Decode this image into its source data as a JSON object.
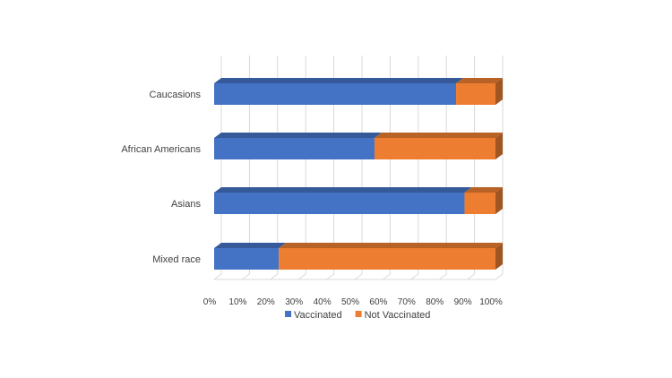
{
  "chart_data": {
    "type": "bar",
    "orientation": "horizontal",
    "stacked": "percent",
    "three_d": true,
    "title": "",
    "xlabel": "",
    "ylabel": "",
    "categories": [
      "Caucasions",
      "African Americans",
      "Asians",
      "Mixed race"
    ],
    "series": [
      {
        "name": "Vaccinated",
        "values": [
          86,
          57,
          89,
          23
        ],
        "color": "#4472C4"
      },
      {
        "name": "Not Vaccinated",
        "values": [
          14,
          43,
          11,
          77
        ],
        "color": "#ED7D31"
      }
    ],
    "xlim": [
      0,
      100
    ],
    "x_tick_labels": [
      "0%",
      "10%",
      "20%",
      "30%",
      "40%",
      "50%",
      "60%",
      "70%",
      "80%",
      "90%",
      "100%"
    ],
    "grid": true,
    "legend": {
      "position": "bottom"
    }
  }
}
